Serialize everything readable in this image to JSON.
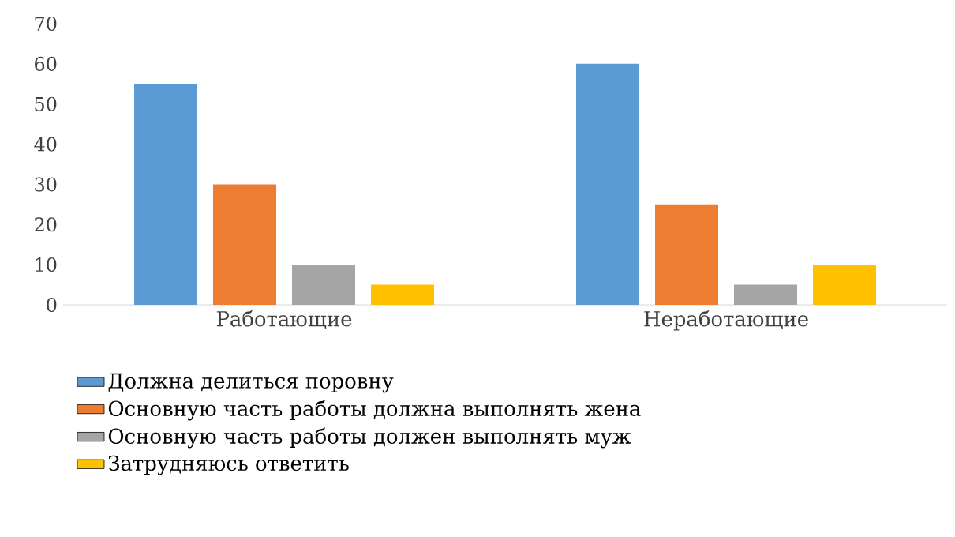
{
  "chart_data": {
    "type": "bar",
    "categories": [
      "Работающие",
      "Неработающие"
    ],
    "series": [
      {
        "name": "Должна делиться поровну",
        "color": "#5b9bd5",
        "values": [
          55,
          60
        ]
      },
      {
        "name": "Основную часть работы должна выполнять жена",
        "color": "#ed7d31",
        "values": [
          30,
          25
        ]
      },
      {
        "name": "Основную часть работы должен выполнять муж",
        "color": "#a5a5a5",
        "values": [
          10,
          5
        ]
      },
      {
        "name": "Затрудняюсь ответить",
        "color": "#ffc000",
        "values": [
          5,
          10
        ]
      }
    ],
    "ylim": [
      0,
      70
    ],
    "yticks": [
      0,
      10,
      20,
      30,
      40,
      50,
      60,
      70
    ],
    "legend": "bottom"
  }
}
